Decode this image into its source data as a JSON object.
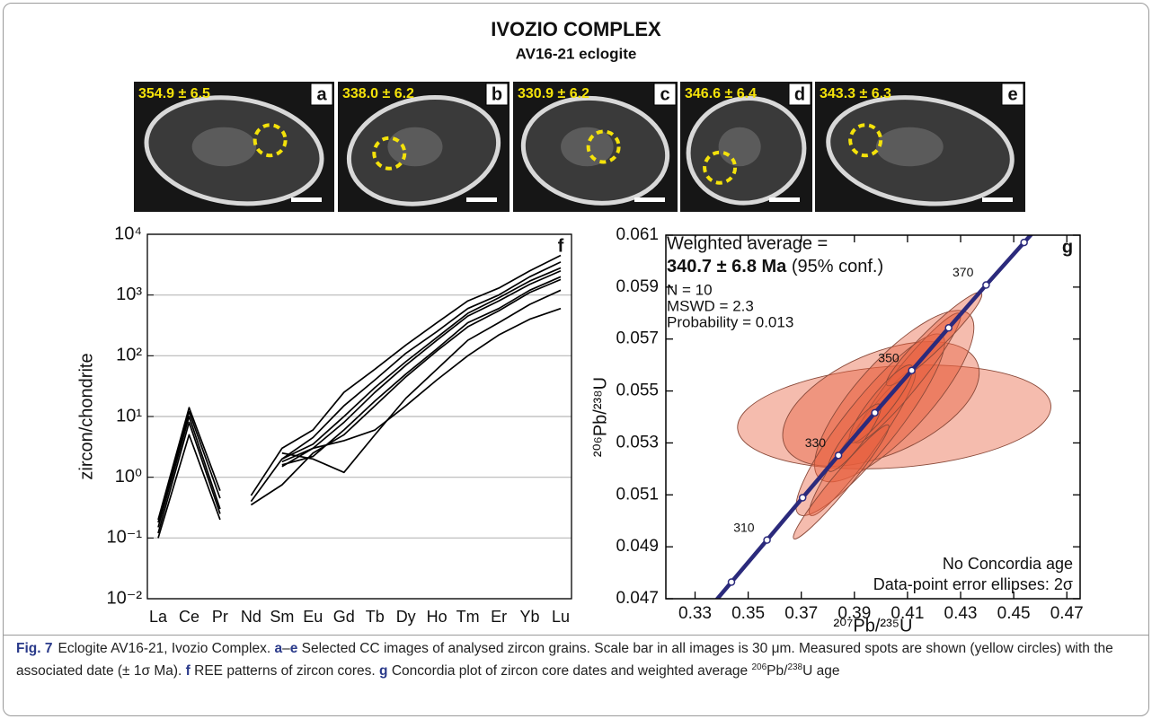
{
  "header": {
    "title": "IVOZIO COMPLEX",
    "subtitle": "AV16-21 eclogite"
  },
  "images": [
    {
      "age": "354.9 ± 6.5",
      "label": "a"
    },
    {
      "age": "338.0 ± 6.2",
      "label": "b"
    },
    {
      "age": "330.9 ± 6.2",
      "label": "c"
    },
    {
      "age": "346.6 ± 6.4",
      "label": "d"
    },
    {
      "age": "343.3 ± 6.3",
      "label": "e"
    }
  ],
  "chart_data": [
    {
      "type": "line",
      "panel_label": "f",
      "ylabel": "zircon/chondrite",
      "categories": [
        "La",
        "Ce",
        "Pr",
        "Nd",
        "Sm",
        "Eu",
        "Gd",
        "Tb",
        "Dy",
        "Ho",
        "Tm",
        "Er",
        "Yb",
        "Lu"
      ],
      "yscale": "log",
      "ylim": [
        0.01,
        10000
      ],
      "yticks": [
        {
          "value": 0.01,
          "label": "10⁻²"
        },
        {
          "value": 0.1,
          "label": "10⁻¹"
        },
        {
          "value": 1,
          "label": "10⁰"
        },
        {
          "value": 10,
          "label": "10¹"
        },
        {
          "value": 100,
          "label": "10²"
        },
        {
          "value": 1000,
          "label": "10³"
        },
        {
          "value": 10000,
          "label": "10⁴"
        }
      ],
      "grid": true,
      "series": [
        {
          "color": "#000000",
          "values": [
            0.1,
            5,
            0.2,
            null,
            null,
            null,
            null,
            null,
            null,
            null,
            null,
            null,
            null,
            null
          ]
        },
        {
          "color": "#000000",
          "values": [
            0.15,
            10,
            0.3,
            null,
            null,
            null,
            null,
            null,
            null,
            null,
            null,
            null,
            null,
            null
          ]
        },
        {
          "color": "#000000",
          "values": [
            0.2,
            14,
            0.6,
            null,
            null,
            null,
            null,
            null,
            null,
            null,
            null,
            null,
            null,
            null
          ]
        },
        {
          "color": "#000000",
          "values": [
            0.18,
            12,
            0.45,
            null,
            null,
            null,
            null,
            null,
            null,
            null,
            null,
            null,
            null,
            null
          ]
        },
        {
          "color": "#000000",
          "values": [
            0.12,
            8,
            0.25,
            null,
            null,
            null,
            null,
            null,
            null,
            null,
            null,
            null,
            null,
            null
          ]
        },
        {
          "color": "#000000",
          "values": [
            null,
            null,
            null,
            0.5,
            3,
            6,
            25,
            60,
            150,
            350,
            800,
            1300,
            2500,
            4500
          ]
        },
        {
          "color": "#000000",
          "values": [
            null,
            null,
            null,
            0.4,
            2,
            4.5,
            15,
            40,
            110,
            250,
            600,
            1000,
            2000,
            3500
          ]
        },
        {
          "color": "#000000",
          "values": [
            null,
            null,
            null,
            null,
            1.5,
            3,
            8,
            25,
            70,
            180,
            450,
            800,
            1500,
            2500
          ]
        },
        {
          "color": "#000000",
          "values": [
            null,
            null,
            null,
            0.35,
            0.75,
            2.5,
            5,
            15,
            45,
            120,
            300,
            550,
            1100,
            1800
          ]
        },
        {
          "color": "#000000",
          "values": [
            null,
            null,
            null,
            null,
            2.5,
            2,
            1.2,
            5,
            20,
            60,
            180,
            350,
            700,
            1200
          ]
        },
        {
          "color": "#000000",
          "values": [
            null,
            null,
            null,
            null,
            1.8,
            3,
            4,
            6,
            15,
            40,
            100,
            220,
            400,
            600
          ]
        },
        {
          "color": "#000000",
          "values": [
            null,
            null,
            null,
            null,
            2,
            3.5,
            10,
            30,
            80,
            200,
            500,
            900,
            1700,
            2800
          ]
        },
        {
          "color": "#000000",
          "values": [
            null,
            null,
            null,
            null,
            1.6,
            2.2,
            6,
            18,
            50,
            130,
            350,
            600,
            1200,
            2000
          ]
        }
      ]
    },
    {
      "type": "concordia",
      "panel_label": "g",
      "xlabel": "²⁰⁷Pb/²³⁵U",
      "ylabel": "²⁰⁶Pb/²³⁸U",
      "xlim": [
        0.319,
        0.475
      ],
      "xticks": [
        0.33,
        0.35,
        0.37,
        0.39,
        0.41,
        0.43,
        0.45,
        0.47
      ],
      "ylim": [
        0.047,
        0.061
      ],
      "yticks": [
        0.047,
        0.049,
        0.051,
        0.053,
        0.055,
        0.057,
        0.059,
        0.061
      ],
      "concordia": {
        "color": "#2b2a7c",
        "x": [
          0.3437,
          0.3571,
          0.3705,
          0.384,
          0.3977,
          0.4116,
          0.4255,
          0.4396,
          0.4539
        ],
        "y": [
          0.04764,
          0.04926,
          0.05089,
          0.05252,
          0.05416,
          0.05579,
          0.05743,
          0.05908,
          0.06072
        ],
        "labels": [
          null,
          310,
          null,
          330,
          null,
          350,
          null,
          370,
          null
        ]
      },
      "ellipse_color": "#e8603f",
      "ellipses": [
        {
          "x": 0.405,
          "y": 0.054,
          "x_err": 0.059,
          "y_err": 0.002,
          "rho": 0.2
        },
        {
          "x": 0.4,
          "y": 0.0545,
          "x_err": 0.037,
          "y_err": 0.0024,
          "rho": 0.5
        },
        {
          "x": 0.405,
          "y": 0.0548,
          "x_err": 0.03,
          "y_err": 0.0033,
          "rho": 0.8
        },
        {
          "x": 0.396,
          "y": 0.0537,
          "x_err": 0.028,
          "y_err": 0.0035,
          "rho": 0.9
        },
        {
          "x": 0.393,
          "y": 0.053,
          "x_err": 0.02,
          "y_err": 0.0028,
          "rho": 0.95
        },
        {
          "x": 0.385,
          "y": 0.0515,
          "x_err": 0.018,
          "y_err": 0.0022,
          "rho": 0.97
        },
        {
          "x": 0.41,
          "y": 0.0555,
          "x_err": 0.02,
          "y_err": 0.0025,
          "rho": 0.95
        },
        {
          "x": 0.42,
          "y": 0.057,
          "x_err": 0.018,
          "y_err": 0.0018,
          "rho": 0.95
        },
        {
          "x": 0.4,
          "y": 0.0545,
          "x_err": 0.012,
          "y_err": 0.0015,
          "rho": 0.9
        },
        {
          "x": 0.39,
          "y": 0.0532,
          "x_err": 0.01,
          "y_err": 0.0013,
          "rho": 0.9
        }
      ],
      "annotations": {
        "heading": "Weighted average =",
        "age": "340.7 ± 6.8 Ma",
        "confidence": " (95% conf.)",
        "n": "N = 10",
        "mswd": "MSWD = 2.3",
        "probability": "Probability = 0.013",
        "concordia_age": "No Concordia age",
        "error_note": "Data-point error ellipses: 2σ"
      }
    }
  ],
  "caption": {
    "label": "Fig. 7",
    "parts": [
      "Eclogite AV16-21, Ivozio Complex. ",
      "a",
      "–",
      "e",
      " Selected CC images of analysed zircon grains. Scale bar in all images is 30 μm. Measured spots are shown (yellow circles) with the associated date (± 1σ Ma). ",
      "f",
      " REE patterns of zircon cores. ",
      "g",
      " Concordia plot of zircon core dates and weighted average ",
      "206",
      "Pb/",
      "238",
      "U age"
    ]
  }
}
